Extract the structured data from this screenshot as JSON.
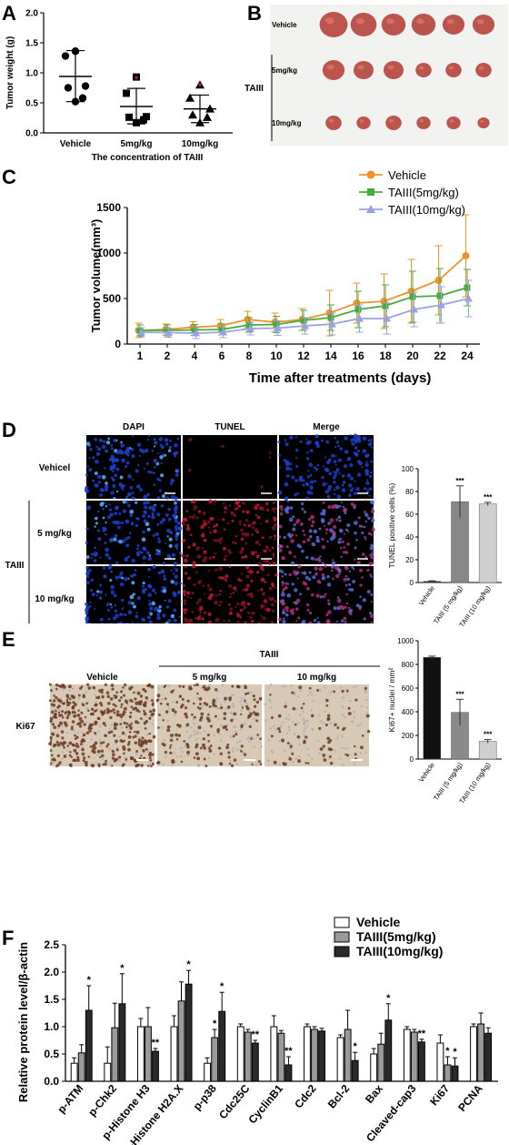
{
  "panels": {
    "A": {
      "letter": "A",
      "chart_data": {
        "type": "scatter",
        "ylabel": "Tumor weight (g)",
        "xlabel": "The concentration of TAIII",
        "categories": [
          "Vehicle",
          "5mg/kg",
          "10mg/kg"
        ],
        "ylim": [
          0,
          2.0
        ],
        "yticks": [
          "0.0",
          "0.5",
          "1.0",
          "1.5",
          "2.0"
        ],
        "groups": [
          {
            "name": "Vehicle",
            "marker": "circle",
            "points": [
              1.36,
              1.28,
              0.78,
              0.75,
              0.58,
              0.52
            ],
            "mean": 0.94,
            "sd_low": 0.52,
            "sd_high": 1.37,
            "sig": ""
          },
          {
            "name": "5mg/kg",
            "marker": "square",
            "points": [
              0.93,
              0.66,
              0.27,
              0.26,
              0.22,
              0.17
            ],
            "mean": 0.44,
            "sd_low": 0.15,
            "sd_high": 0.74,
            "sig": "*"
          },
          {
            "name": "10mg/kg",
            "marker": "triangle",
            "points": [
              0.8,
              0.58,
              0.4,
              0.3,
              0.26,
              0.17
            ],
            "mean": 0.4,
            "sd_low": 0.17,
            "sd_high": 0.63,
            "sig": "*"
          }
        ],
        "sig_color": "#e0352b"
      }
    },
    "B": {
      "letter": "B",
      "rows": [
        "Vehicle",
        "5mg/kg",
        "10mg/kg"
      ],
      "group_label": "TAIII",
      "tumor_counts": [
        6,
        6,
        6
      ]
    },
    "C": {
      "letter": "C",
      "chart_data": {
        "type": "line",
        "ylabel": "Tumor volume(mm³)",
        "xlabel": "Time after treatments (days)",
        "x": [
          "1",
          "2",
          "4",
          "6",
          "8",
          "10",
          "12",
          "14",
          "16",
          "18",
          "20",
          "22",
          "24"
        ],
        "ylim": [
          0,
          1500
        ],
        "yticks": [
          "0",
          "500",
          "1000",
          "1500"
        ],
        "series": [
          {
            "name": "Vehicle",
            "color": "#f0922a",
            "marker": "circle",
            "values": [
              150,
              160,
              185,
              200,
              270,
              240,
              270,
              340,
              450,
              470,
              580,
              700,
              970
            ],
            "err": [
              80,
              60,
              60,
              70,
              90,
              100,
              120,
              250,
              220,
              300,
              350,
              380,
              450
            ]
          },
          {
            "name": "TAIII(5mg/kg)",
            "color": "#4aab3c",
            "marker": "square",
            "values": [
              150,
              150,
              155,
              160,
              210,
              215,
              260,
              290,
              380,
              420,
              520,
              530,
              620
            ],
            "err": [
              60,
              60,
              60,
              60,
              80,
              90,
              110,
              140,
              200,
              230,
              280,
              300,
              200
            ]
          },
          {
            "name": "TAIII(10mg/kg)",
            "color": "#9aa2e0",
            "marker": "triangle",
            "values": [
              130,
              125,
              120,
              130,
              170,
              175,
              200,
              220,
              280,
              280,
              380,
              430,
              500
            ],
            "err": [
              50,
              50,
              60,
              60,
              70,
              80,
              90,
              120,
              150,
              170,
              190,
              200,
              200
            ]
          }
        ],
        "legend": "top-right"
      }
    },
    "D": {
      "letter": "D",
      "columns": [
        "DAPI",
        "TUNEL",
        "Merge"
      ],
      "rows": [
        "Vehicel",
        "5 mg/kg",
        "10 mg/kg"
      ],
      "group_label": "TAIII",
      "chart_data": {
        "type": "bar",
        "ylabel": "TUNEL positive cells (%)",
        "categories": [
          "Vehicle",
          "TAIII (5 mg/kg)",
          "TAIII (10 mg/kg)"
        ],
        "values": [
          1,
          71,
          69
        ],
        "err": [
          0.5,
          14,
          1.5
        ],
        "sig": [
          "",
          "***",
          "***"
        ],
        "colors": [
          "#222222",
          "#888888",
          "#cfcfcf"
        ],
        "ylim": [
          0,
          100
        ],
        "yticks": [
          "0",
          "20",
          "40",
          "60",
          "80",
          "100"
        ]
      }
    },
    "E": {
      "letter": "E",
      "group_label": "TAIII",
      "columns": [
        "Vehicle",
        "5 mg/kg",
        "10 mg/kg"
      ],
      "row_label": "Ki67",
      "chart_data": {
        "type": "bar",
        "ylabel": "Ki67+ nuclei / mm²",
        "categories": [
          "Vehicle",
          "TAIII (5 mg/kg)",
          "TAIII (10 mg/kg)"
        ],
        "values": [
          860,
          395,
          150
        ],
        "err": [
          10,
          110,
          15
        ],
        "sig": [
          "",
          "***",
          "***"
        ],
        "colors": [
          "#111111",
          "#8a8a8a",
          "#cfcfcf"
        ],
        "ylim": [
          0,
          1000
        ],
        "yticks": [
          "0",
          "200",
          "400",
          "600",
          "800",
          "1000"
        ]
      }
    },
    "F": {
      "letter": "F",
      "chart_data": {
        "type": "bar",
        "ylabel": "Relative protein level/β-actin",
        "categories": [
          "p-ATM",
          "p-Chk2",
          "p-Histone H3",
          "p-Histone H2A.X",
          "p-p38",
          "Cdc25C",
          "CyclinB1",
          "Cdc2",
          "Bcl-2",
          "Bax",
          "Cleaved-cap3",
          "Ki67",
          "PCNA"
        ],
        "series": [
          {
            "name": "Vehicle",
            "fill": "#ffffff",
            "values": [
              0.33,
              0.33,
              1.0,
              1.0,
              0.33,
              1.0,
              1.0,
              1.0,
              0.8,
              0.5,
              0.95,
              0.7,
              1.0
            ],
            "err": [
              0.1,
              0.3,
              0.15,
              0.2,
              0.1,
              0.05,
              0.2,
              0.05,
              0.05,
              0.1,
              0.05,
              0.15,
              0.05
            ],
            "sig": [
              "",
              "",
              "",
              "",
              "",
              "",
              "",
              "",
              "",
              "",
              "",
              "",
              ""
            ]
          },
          {
            "name": "TAIII(5mg/kg)",
            "fill": "#9a9a9a",
            "values": [
              0.52,
              0.98,
              1.0,
              1.47,
              0.8,
              0.9,
              0.88,
              0.95,
              0.95,
              0.68,
              0.9,
              0.3,
              1.05
            ],
            "err": [
              0.15,
              0.45,
              0.35,
              0.35,
              0.15,
              0.05,
              0.05,
              0.05,
              0.35,
              0.2,
              0.05,
              0.15,
              0.2
            ],
            "sig": [
              "",
              "",
              "",
              "",
              "*",
              "",
              "",
              "",
              "",
              "",
              "",
              "*",
              ""
            ]
          },
          {
            "name": "TAIII(10mg/kg)",
            "fill": "#2a2a2a",
            "values": [
              1.3,
              1.42,
              0.55,
              1.78,
              1.28,
              0.7,
              0.3,
              0.92,
              0.38,
              1.12,
              0.72,
              0.28,
              0.88
            ],
            "err": [
              0.45,
              0.55,
              0.05,
              0.25,
              0.35,
              0.05,
              0.15,
              0.05,
              0.15,
              0.3,
              0.05,
              0.15,
              0.1
            ],
            "sig": [
              "*",
              "*",
              "**",
              "*",
              "*",
              "**",
              "**",
              "",
              "*",
              "*",
              "**",
              "*",
              ""
            ]
          }
        ],
        "ylim": [
          0,
          2.5
        ],
        "yticks": [
          "0.0",
          "0.5",
          "1.0",
          "1.5",
          "2.0",
          "2.5"
        ],
        "legend": "top-right"
      }
    }
  },
  "colors": {
    "dapi": "#1a3bd6",
    "tunel": "#b0122a",
    "ihc_bg": "#d8c9b4",
    "ihc_dot": "#6b3a1e",
    "tumor": "#b5423a"
  }
}
